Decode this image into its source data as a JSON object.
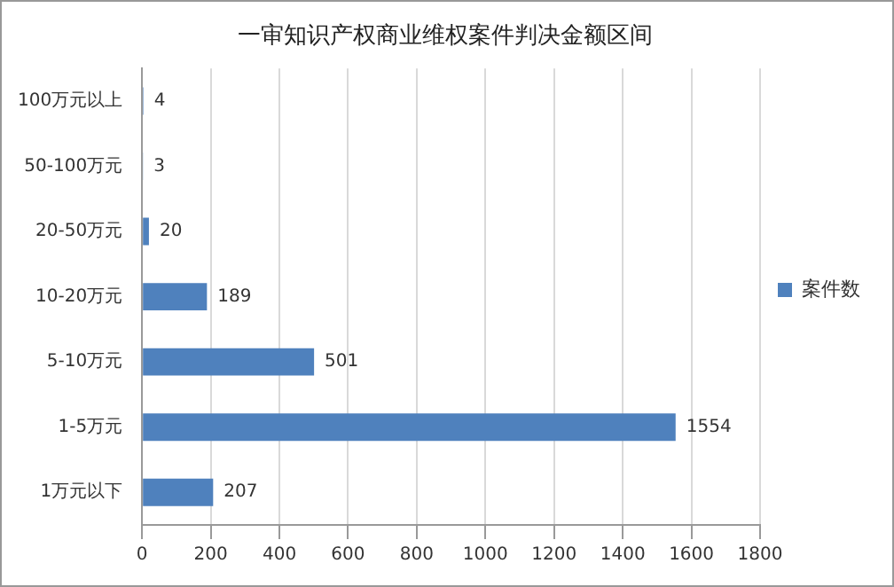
{
  "chart_data": {
    "type": "bar",
    "orientation": "horizontal",
    "title": "一审知识产权商业维权案件判决金额区间",
    "categories": [
      "100万元以上",
      "50-100万元",
      "20-50万元",
      "10-20万元",
      "5-10万元",
      "1-5万元",
      "1万元以下"
    ],
    "series": [
      {
        "name": "案件数",
        "color": "#4f81bd",
        "values": [
          4,
          3,
          20,
          189,
          501,
          1554,
          207
        ]
      }
    ],
    "xlim": [
      0,
      1800
    ],
    "xticks": [
      0,
      200,
      400,
      600,
      800,
      1000,
      1200,
      1400,
      1600,
      1800
    ],
    "grid": "x",
    "legend": "right",
    "data_labels": true
  }
}
